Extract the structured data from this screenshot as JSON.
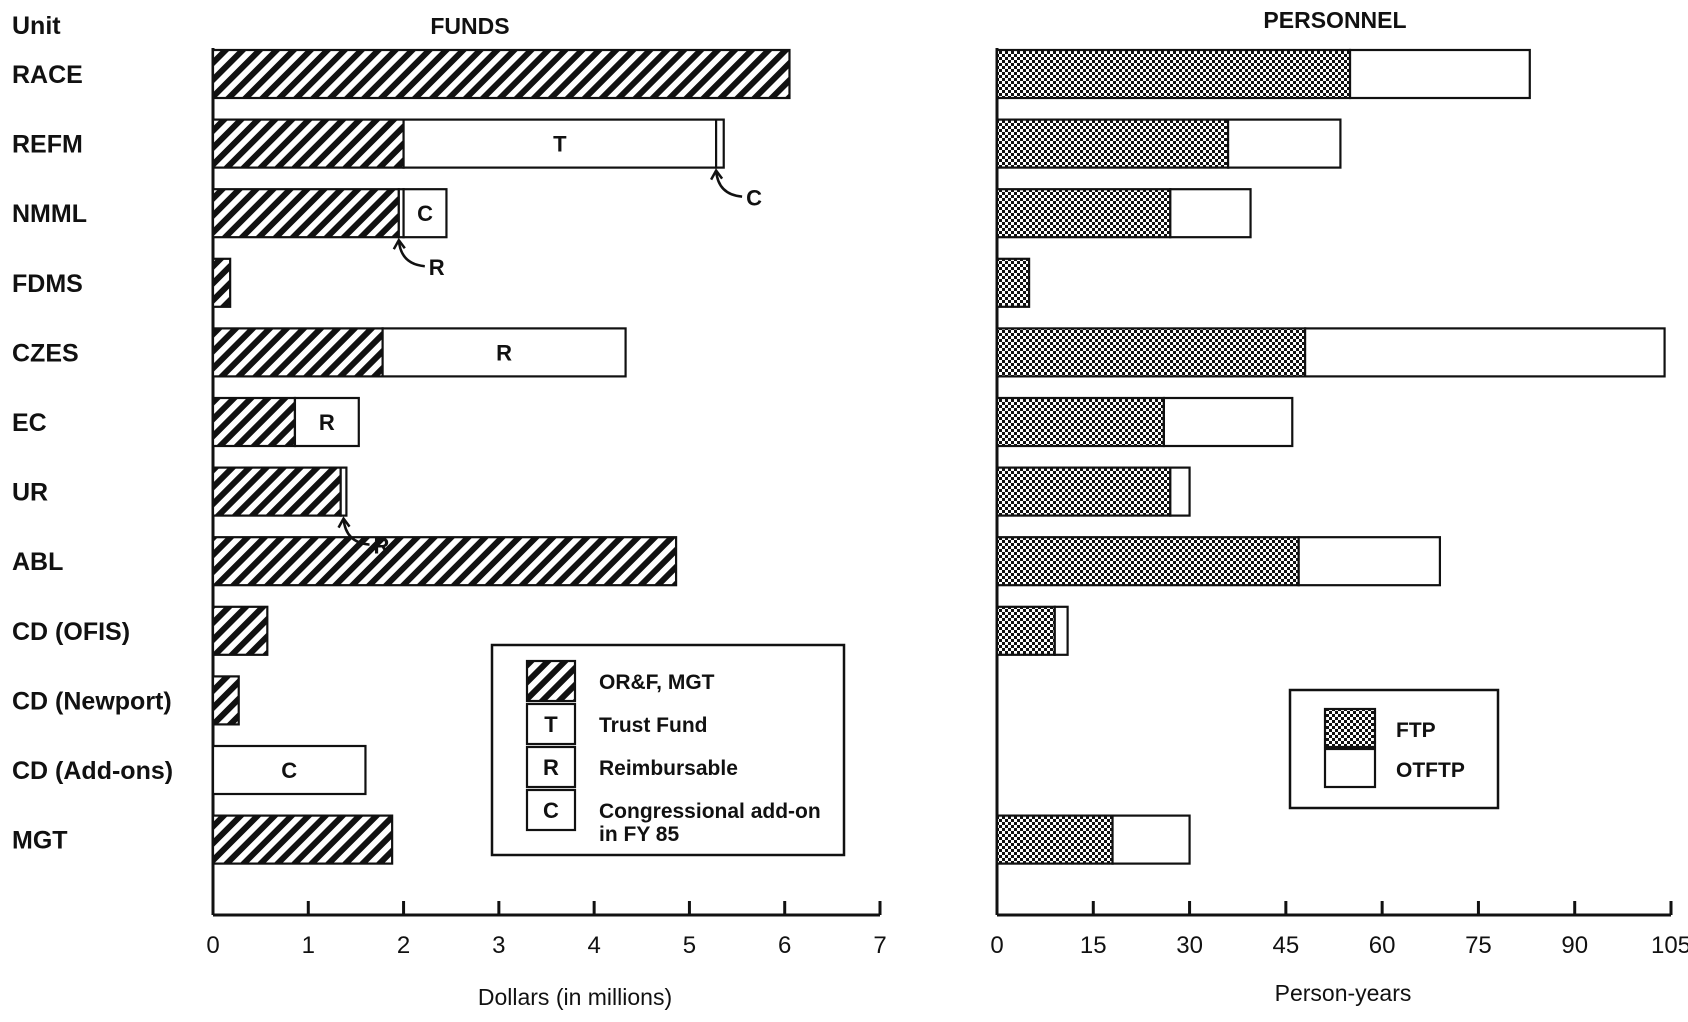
{
  "header": {
    "unit_label": "Unit"
  },
  "chart_data": [
    {
      "type": "bar",
      "orientation": "horizontal",
      "stacked": true,
      "title": "FUNDS",
      "xlabel": "Dollars (in millions)",
      "xlim": [
        0,
        7
      ],
      "xticks": [
        "0",
        "1",
        "2",
        "3",
        "4",
        "5",
        "6",
        "7"
      ],
      "grid": false,
      "legend_position": "bottom-right",
      "categories": [
        "RACE",
        "REFM",
        "NMML",
        "FDMS",
        "CZES",
        "EC",
        "UR",
        "ABL",
        "CD (OFIS)",
        "CD (Newport)",
        "CD (Add-ons)",
        "MGT"
      ],
      "series": [
        {
          "name": "OR&F, MGT",
          "key": "O",
          "pattern": "hatch",
          "values": [
            6.05,
            2.0,
            1.95,
            0.18,
            1.78,
            0.86,
            1.34,
            4.86,
            0.57,
            0.27,
            0,
            1.88
          ]
        },
        {
          "name": "Trust Fund",
          "key": "T",
          "pattern": "none",
          "values": [
            0,
            3.28,
            0,
            0,
            0,
            0,
            0,
            0,
            0,
            0,
            0,
            0
          ]
        },
        {
          "name": "Reimbursable",
          "key": "R",
          "pattern": "none",
          "values": [
            0,
            0,
            0.05,
            0,
            2.55,
            0.67,
            0.06,
            0,
            0,
            0,
            0,
            0
          ]
        },
        {
          "name": "Congressional add-on\nin FY 85",
          "key": "C",
          "pattern": "none",
          "values": [
            0,
            0.08,
            0.45,
            0,
            0,
            0,
            0,
            0,
            0,
            0,
            1.6,
            0
          ]
        }
      ],
      "inside_labels": [
        {
          "row": 1,
          "series": 1,
          "text": "T"
        },
        {
          "row": 2,
          "series": 3,
          "text": "C"
        },
        {
          "row": 4,
          "series": 2,
          "text": "R"
        },
        {
          "row": 5,
          "series": 2,
          "text": "R"
        },
        {
          "row": 10,
          "series": 3,
          "text": "C"
        }
      ],
      "callouts": [
        {
          "row": 1,
          "at": 5.28,
          "text": "C"
        },
        {
          "row": 2,
          "at": 1.95,
          "text": "R"
        },
        {
          "row": 6,
          "at": 1.37,
          "text": "R"
        }
      ],
      "legend": [
        {
          "key": "",
          "label": "OR&F, MGT",
          "pattern": "hatch"
        },
        {
          "key": "T",
          "label": "Trust Fund",
          "pattern": "none"
        },
        {
          "key": "R",
          "label": "Reimbursable",
          "pattern": "none"
        },
        {
          "key": "C",
          "label": "Congressional add-on\nin FY 85",
          "pattern": "none"
        }
      ]
    },
    {
      "type": "bar",
      "orientation": "horizontal",
      "stacked": true,
      "title": "PERSONNEL",
      "xlabel": "Person-years",
      "xlim": [
        0,
        105
      ],
      "xticks": [
        "0",
        "15",
        "30",
        "45",
        "60",
        "75",
        "90",
        "105"
      ],
      "grid": false,
      "legend_position": "bottom-right",
      "categories": [
        "RACE",
        "REFM",
        "NMML",
        "FDMS",
        "CZES",
        "EC",
        "UR",
        "ABL",
        "CD (OFIS)",
        "CD (Newport)",
        "CD (Add-ons)",
        "MGT"
      ],
      "series": [
        {
          "name": "FTP",
          "pattern": "dots",
          "values": [
            55,
            36,
            27,
            5,
            48,
            26,
            27,
            47,
            9,
            0,
            0,
            18
          ]
        },
        {
          "name": "OTFTP",
          "pattern": "none",
          "values": [
            28,
            17.5,
            12.5,
            0,
            56,
            20,
            3,
            22,
            2,
            0,
            0,
            12
          ]
        }
      ],
      "legend": [
        {
          "label": "FTP",
          "pattern": "dots"
        },
        {
          "label": "OTFTP",
          "pattern": "none"
        }
      ]
    }
  ]
}
